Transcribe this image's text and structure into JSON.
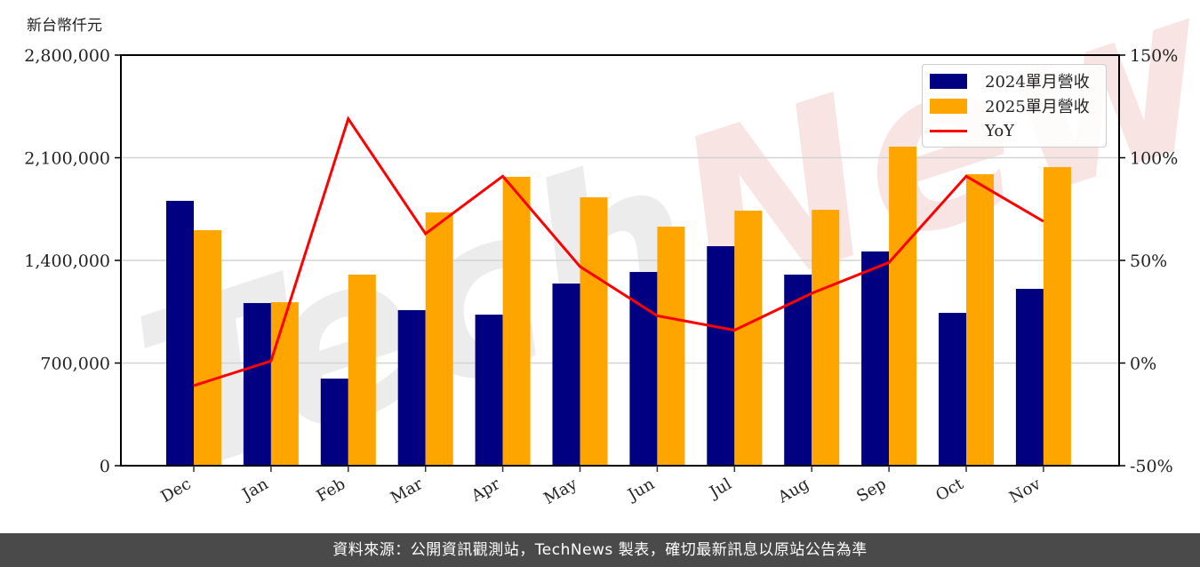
{
  "header": {
    "unit_label": "新台幣仟元"
  },
  "legend": {
    "items": [
      {
        "label": "2024單月營收",
        "color": "#000080",
        "kind": "bar"
      },
      {
        "label": "2025單月營收",
        "color": "#FFA500",
        "kind": "bar"
      },
      {
        "label": "YoY",
        "color": "#FF0000",
        "kind": "line"
      }
    ]
  },
  "footer": {
    "text": "資料來源：公開資訊觀測站，TechNews 製表，確切最新訊息以原站公告為準"
  },
  "watermark": {
    "text": "TechNews"
  },
  "chart_data": {
    "type": "bar",
    "title": "",
    "xlabel": "",
    "ylabel": "新台幣仟元",
    "y2label": "YoY",
    "categories": [
      "Dec",
      "Jan",
      "Feb",
      "Mar",
      "Apr",
      "May",
      "Jun",
      "Jul",
      "Aug",
      "Sep",
      "Oct",
      "Nov"
    ],
    "series": [
      {
        "name": "2024單月營收",
        "type": "bar",
        "axis": "left",
        "color": "#000080",
        "values": [
          1806000,
          1109000,
          594000,
          1061000,
          1030000,
          1242000,
          1321000,
          1497000,
          1303000,
          1461000,
          1042000,
          1206000
        ]
      },
      {
        "name": "2025單月營收",
        "type": "bar",
        "axis": "left",
        "color": "#FFA500",
        "values": [
          1606000,
          1115000,
          1303000,
          1727000,
          1970000,
          1830000,
          1630000,
          1739000,
          1745000,
          2176000,
          1988000,
          2036000
        ]
      },
      {
        "name": "YoY",
        "type": "line",
        "axis": "right",
        "color": "#FF0000",
        "unit": "%",
        "values": [
          -11,
          1,
          119,
          63,
          91,
          47,
          23,
          16,
          34,
          49,
          91,
          69
        ]
      }
    ],
    "ylim": [
      0,
      2800000
    ],
    "yticks": [
      0,
      700000,
      1400000,
      2100000,
      2800000
    ],
    "ytick_labels": [
      "0",
      "700,000",
      "1,400,000",
      "2,100,000",
      "2,800,000"
    ],
    "y2lim": [
      -50,
      150
    ],
    "y2ticks": [
      -50,
      0,
      50,
      100,
      150
    ],
    "y2tick_labels": [
      "-50%",
      "0%",
      "50%",
      "100%",
      "150%"
    ],
    "grid": "horizontal",
    "legend_position": "upper right"
  }
}
